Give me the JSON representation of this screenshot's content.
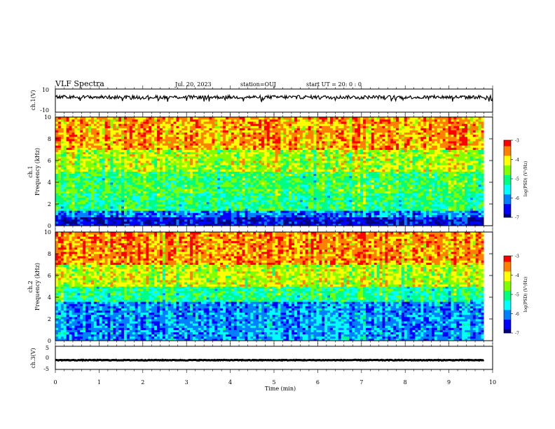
{
  "header": {
    "title": "VLF Spectra",
    "date": "Jul. 20, 2023",
    "station": "station=OUJ",
    "start": "start UT =  20: 0 : 0"
  },
  "colors": {
    "colormap": [
      "#000080",
      "#0000ff",
      "#0080ff",
      "#00ffff",
      "#00ff80",
      "#80ff00",
      "#ffff00",
      "#ff8000",
      "#ff0000"
    ],
    "trace": "#000000"
  },
  "chart_data": [
    {
      "type": "line",
      "panel": "ch1-waveform",
      "ylabel": "ch.1(V)",
      "ylim": [
        -10,
        10
      ],
      "yticks": [
        "10",
        "-10"
      ],
      "xlim": [
        0,
        10
      ],
      "baseline": 3,
      "amplitude": 1.5,
      "note_values": "approximate trace level in volts"
    },
    {
      "type": "heatmap",
      "panel": "ch1-spectrogram",
      "ylabel": "ch.1",
      "ylabel2": "Frequency (kHz)",
      "ylim": [
        0,
        10
      ],
      "yticks": [
        "0",
        "2",
        "4",
        "6",
        "8",
        "10"
      ],
      "xlim": [
        0,
        9.8
      ],
      "bands": [
        {
          "fmax": 0.8,
          "level": -6.6
        },
        {
          "fmax": 1.4,
          "level": -6.0
        },
        {
          "fmax": 3.0,
          "level": -5.0
        },
        {
          "fmax": 5.0,
          "level": -4.8
        },
        {
          "fmax": 7.0,
          "level": -4.3
        },
        {
          "fmax": 10.0,
          "level": -3.6
        }
      ],
      "colorbar": {
        "label": "log(PSD) (V²/Hz)",
        "ticks": [
          "-3",
          "-4",
          "-5",
          "-6",
          "-7"
        ],
        "range": [
          -7,
          -3
        ]
      }
    },
    {
      "type": "heatmap",
      "panel": "ch2-spectrogram",
      "ylabel": "ch.2",
      "ylabel2": "Frequency (kHz)",
      "ylim": [
        0,
        10
      ],
      "yticks": [
        "0",
        "2",
        "4",
        "6",
        "8",
        "10"
      ],
      "xlim": [
        0,
        9.8
      ],
      "bands": [
        {
          "fmax": 3.5,
          "level": -5.9
        },
        {
          "fmax": 5.0,
          "level": -5.0
        },
        {
          "fmax": 7.0,
          "level": -4.2
        },
        {
          "fmax": 10.0,
          "level": -3.5
        }
      ],
      "colorbar": {
        "label": "log(PSD) (V²/Hz)",
        "ticks": [
          "-3",
          "-4",
          "-5",
          "-6",
          "-7"
        ],
        "range": [
          -7,
          -3
        ]
      }
    },
    {
      "type": "line",
      "panel": "ch3-waveform",
      "ylabel": "ch.3(V)",
      "ylim": [
        -5,
        5
      ],
      "yticks": [
        "5",
        "0",
        "-5"
      ],
      "xlim": [
        0,
        9.8
      ],
      "baseline": -1,
      "amplitude": 0.3
    }
  ],
  "xaxis": {
    "label": "Time (min)",
    "ticks": [
      "0",
      "1",
      "2",
      "3",
      "4",
      "5",
      "6",
      "7",
      "8",
      "9",
      "10"
    ],
    "range": [
      0,
      10
    ]
  }
}
